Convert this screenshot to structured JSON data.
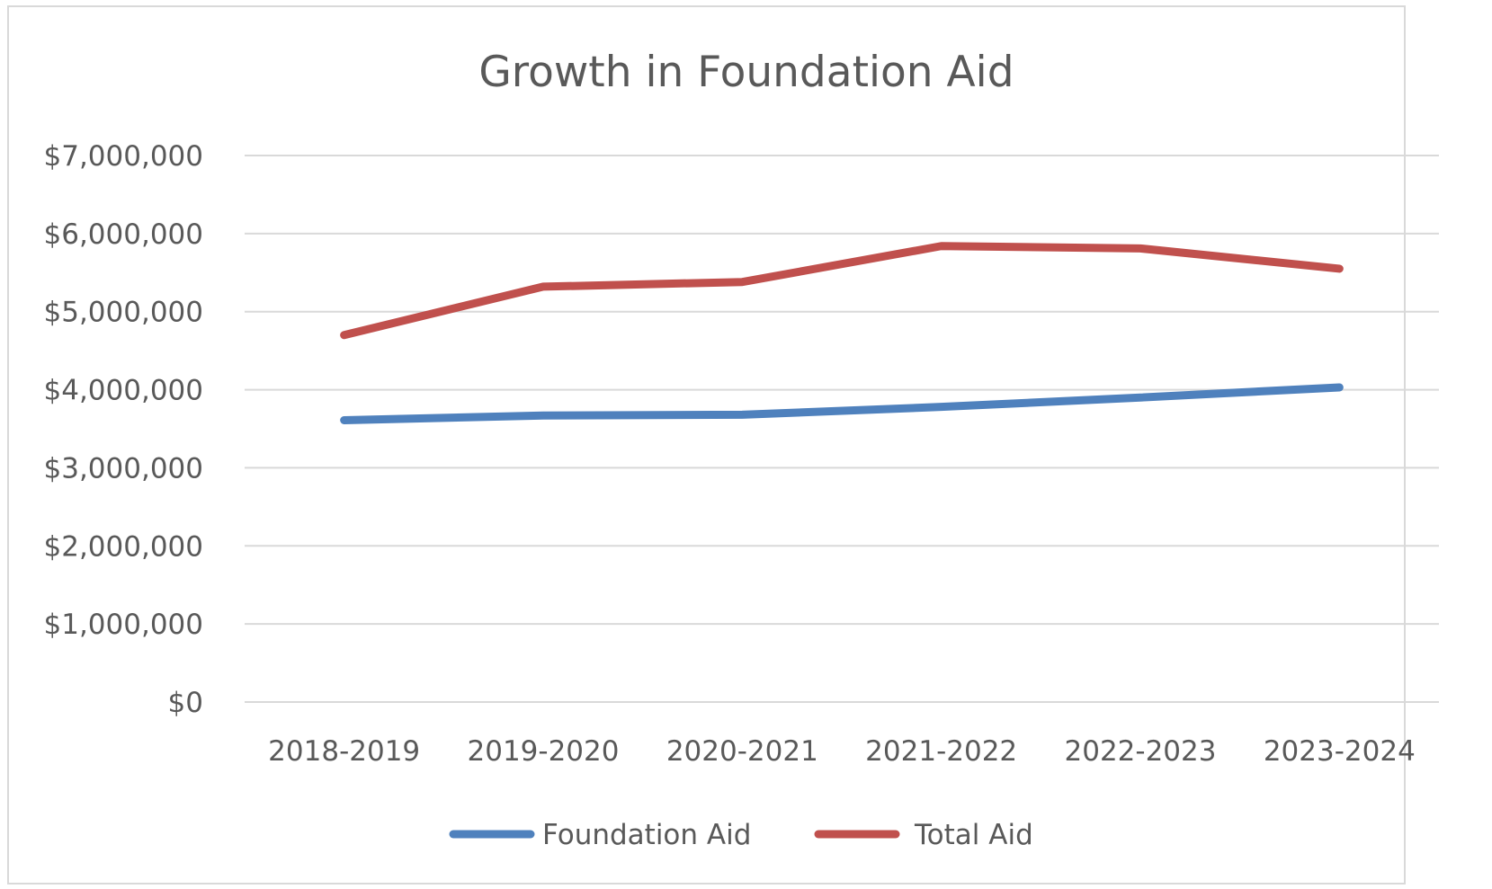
{
  "chart_data": {
    "type": "line",
    "title": "Growth in Foundation Aid",
    "xlabel": "",
    "ylabel": "",
    "categories": [
      "2018-2019",
      "2019-2020",
      "2020-2021",
      "2021-2022",
      "2022-2023",
      "2023-2024"
    ],
    "ylim": [
      0,
      7000000
    ],
    "yticks": [
      0,
      1000000,
      2000000,
      3000000,
      4000000,
      5000000,
      6000000,
      7000000
    ],
    "ytick_labels": [
      "$0",
      "$1,000,000",
      "$2,000,000",
      "$3,000,000",
      "$4,000,000",
      "$5,000,000",
      "$6,000,000",
      "$7,000,000"
    ],
    "grid": true,
    "legend_position": "bottom",
    "series": [
      {
        "name": "Foundation Aid",
        "color": "#4f81bd",
        "values": [
          3610000,
          3670000,
          3680000,
          3780000,
          3900000,
          4030000
        ]
      },
      {
        "name": "Total Aid",
        "color": "#c0504d",
        "values": [
          4700000,
          5320000,
          5380000,
          5840000,
          5810000,
          5550000
        ]
      }
    ]
  }
}
